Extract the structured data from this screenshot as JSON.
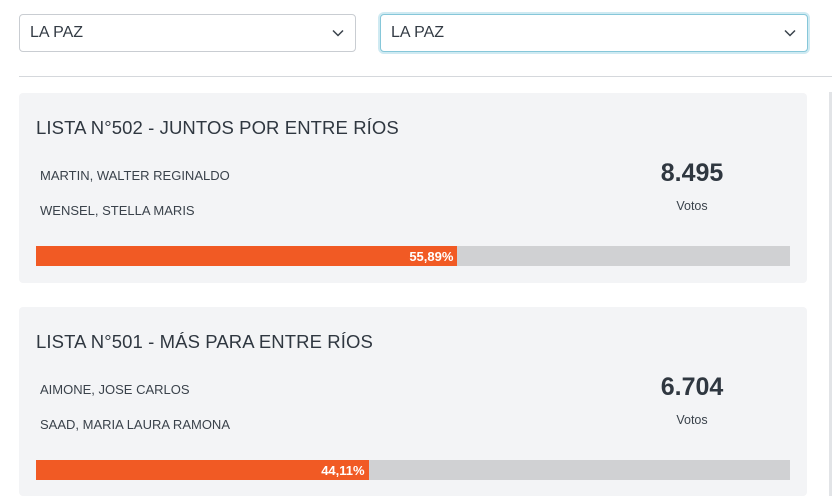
{
  "filters": {
    "first": {
      "value": "LA PAZ",
      "icon": "chevron-down-icon"
    },
    "second": {
      "value": "LA PAZ",
      "icon": "chevron-down-icon"
    }
  },
  "lists": [
    {
      "title": "LISTA N°502 - JUNTOS POR ENTRE RÍOS",
      "candidates": [
        "MARTIN, WALTER REGINALDO",
        "WENSEL, STELLA MARIS"
      ],
      "votes": "8.495",
      "votes_label": "Votos",
      "percent_label": "55,89%",
      "percent": 55.89
    },
    {
      "title": "LISTA N°501 - MÁS PARA ENTRE RÍOS",
      "candidates": [
        "AIMONE, JOSE CARLOS",
        "SAAD, MARIA LAURA RAMONA"
      ],
      "votes": "6.704",
      "votes_label": "Votos",
      "percent_label": "44,11%",
      "percent": 44.11
    }
  ],
  "colors": {
    "bar_fill": "#f15a24",
    "bar_track": "#d0d1d3",
    "card_bg": "#f3f4f6"
  }
}
